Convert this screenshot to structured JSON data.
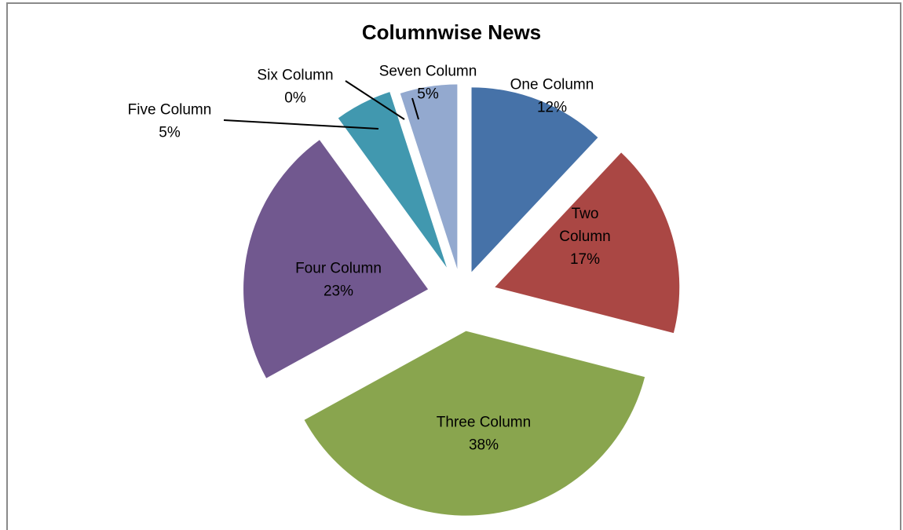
{
  "chart_data": {
    "type": "pie",
    "title": "Columnwise News",
    "slices": [
      {
        "name": "One Column",
        "value": 12,
        "label": "12%",
        "color": "#4672A8"
      },
      {
        "name": "Two Column",
        "value": 17,
        "label": "17%",
        "color": "#AA4744"
      },
      {
        "name": "Three Column",
        "value": 38,
        "label": "38%",
        "color": "#89A54E"
      },
      {
        "name": "Four Column",
        "value": 23,
        "label": "23%",
        "color": "#71588F"
      },
      {
        "name": "Five Column",
        "value": 5,
        "label": "5%",
        "color": "#4198AF"
      },
      {
        "name": "Six Column",
        "value": 0,
        "label": "0%",
        "color": "#DB843D"
      },
      {
        "name": "Seven Column",
        "value": 5,
        "label": "5%",
        "color": "#93A9CF"
      }
    ],
    "exploded": true,
    "legend": "none"
  }
}
